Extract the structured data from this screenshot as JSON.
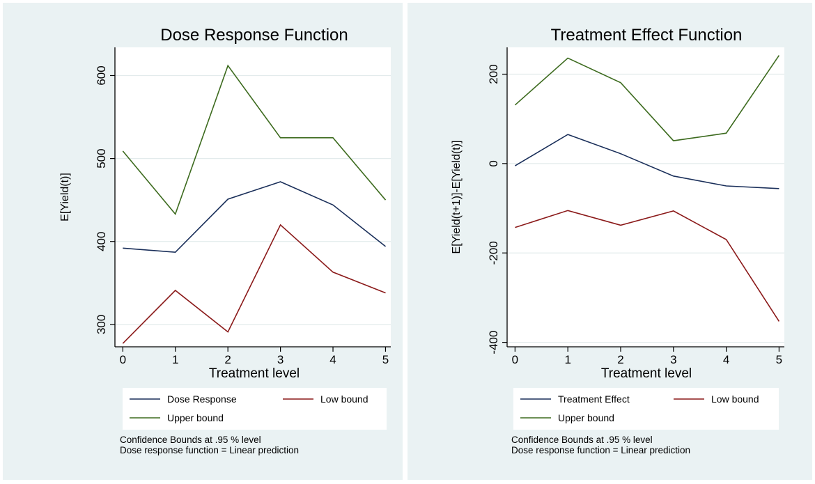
{
  "chart_data": [
    {
      "type": "line",
      "title": "Dose Response Function",
      "xlabel": "Treatment level",
      "ylabel": "E[Yield(t)]",
      "x": [
        0,
        1,
        2,
        3,
        4,
        5
      ],
      "xticks": [
        "0",
        "1",
        "2",
        "3",
        "4",
        "5"
      ],
      "yticks": [
        300,
        400,
        500,
        600
      ],
      "ylim": [
        273,
        634
      ],
      "xlim": [
        -0.15,
        5.1
      ],
      "grid": true,
      "series": [
        {
          "name": "Dose Response",
          "color": "#1a2f5a",
          "values": [
            392,
            387,
            451,
            472,
            444,
            394
          ]
        },
        {
          "name": "Low bound",
          "color": "#8b1a1a",
          "values": [
            277,
            341,
            291,
            420,
            363,
            338
          ]
        },
        {
          "name": "Upper bound",
          "color": "#3d6b1f",
          "values": [
            509,
            433,
            612,
            525,
            525,
            450
          ]
        }
      ],
      "legend": {
        "position": "bottom",
        "items": [
          "Dose Response",
          "Low bound",
          "Upper bound"
        ]
      },
      "notes": [
        "Confidence Bounds at .95 % level",
        "Dose response function = Linear prediction"
      ]
    },
    {
      "type": "line",
      "title": "Treatment Effect Function",
      "xlabel": "Treatment level",
      "ylabel": "E[Yield(t+1)]-E[Yield(t)]",
      "x": [
        0,
        1,
        2,
        3,
        4,
        5
      ],
      "xticks": [
        "0",
        "1",
        "2",
        "3",
        "4",
        "5"
      ],
      "yticks": [
        200,
        0,
        -200,
        -400
      ],
      "ylim": [
        -410,
        260
      ],
      "xlim": [
        -0.15,
        5.1
      ],
      "grid": true,
      "series": [
        {
          "name": "Treatment Effect",
          "color": "#1a2f5a",
          "values": [
            -5,
            65,
            22,
            -28,
            -50,
            -56
          ]
        },
        {
          "name": "Low bound",
          "color": "#8b1a1a",
          "values": [
            -143,
            -105,
            -138,
            -106,
            -170,
            -353
          ]
        },
        {
          "name": "Upper bound",
          "color": "#3d6b1f",
          "values": [
            131,
            236,
            181,
            51,
            68,
            242
          ]
        }
      ],
      "legend": {
        "position": "bottom",
        "items": [
          "Treatment Effect",
          "Low bound",
          "Upper bound"
        ]
      },
      "notes": [
        "Confidence Bounds at .95 % level",
        "Dose response function = Linear prediction"
      ]
    }
  ],
  "colors": {
    "outer_background": "#eaf2f3",
    "plot_background": "#ffffff",
    "grid": "#e3ebec"
  }
}
